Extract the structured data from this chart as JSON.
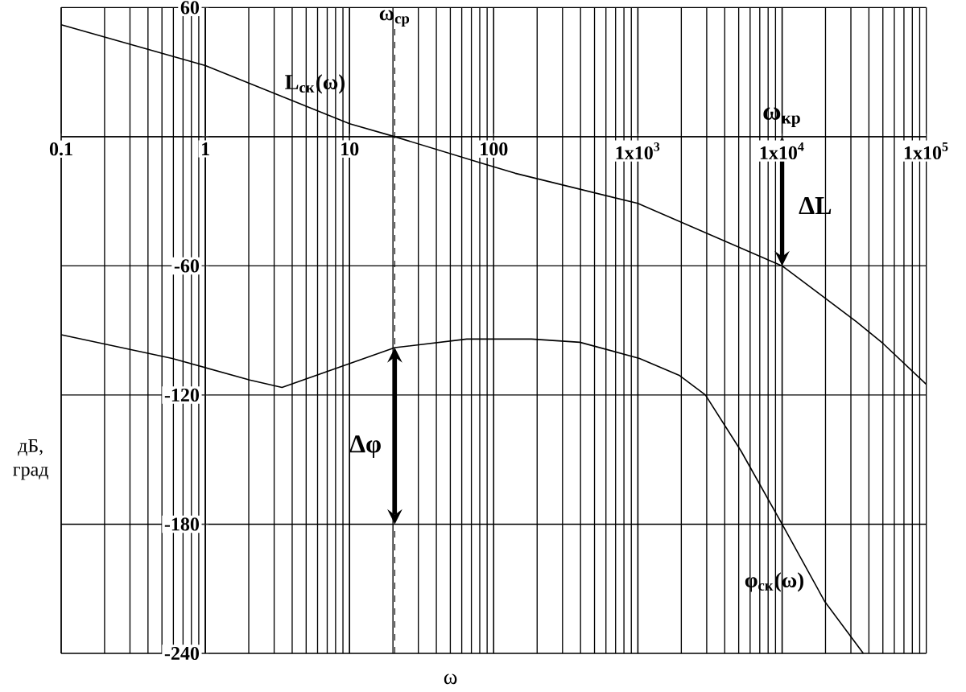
{
  "chart_data": {
    "type": "line",
    "xlabel": "ω",
    "ylabel": "дБ, град",
    "log": "x",
    "grid": true,
    "xlim": [
      0.1,
      100000
    ],
    "ylim": [
      -240,
      60
    ],
    "xticks": [
      0.1,
      1,
      10,
      100,
      {
        "value": 1000,
        "label": "1x10$^{3}$"
      },
      {
        "value": 10000,
        "label": "1x10$^{4}$"
      },
      {
        "value": 100000,
        "label": "1x10$^{5}$"
      }
    ],
    "yticks": [
      60,
      {
        "value": 0,
        "label": null
      },
      -60,
      -120,
      -180,
      -240
    ],
    "series": [
      {
        "name": "L$_{ск}$(ω)",
        "color": "#000000",
        "x": [
          0.1,
          1,
          10,
          20.6,
          84,
          141,
          1000,
          10000,
          32800,
          50000,
          100000
        ],
        "values": [
          52,
          33,
          6,
          0,
          -12.5,
          -17,
          -31,
          -60,
          -86,
          -96,
          -115
        ]
      },
      {
        "name": "φ$_{ск}$(ω)",
        "color": "#000000",
        "x": [
          0.1,
          0.59,
          2.03,
          3.4,
          20.6,
          65,
          183,
          396,
          1026,
          1950,
          2940,
          5190,
          10000,
          19800,
          36600
        ],
        "values": [
          -92,
          -103,
          -113,
          -116.5,
          -98,
          -94,
          -94,
          -95.5,
          -103,
          -111,
          -120,
          -146,
          -180,
          -216,
          -240
        ]
      }
    ],
    "ref_lines": [
      {
        "axis": "x",
        "value": 20.6,
        "label": "ω$_{ср}$",
        "line_style": "dashed"
      }
    ],
    "annotations": [
      {
        "text": "ΔL",
        "x": 17000,
        "y": -32
      },
      {
        "text": "Δφ",
        "x": 12.9,
        "y": -144
      },
      {
        "text": "ω$_{кр}$",
        "x": 10000,
        "y": 9
      }
    ]
  }
}
